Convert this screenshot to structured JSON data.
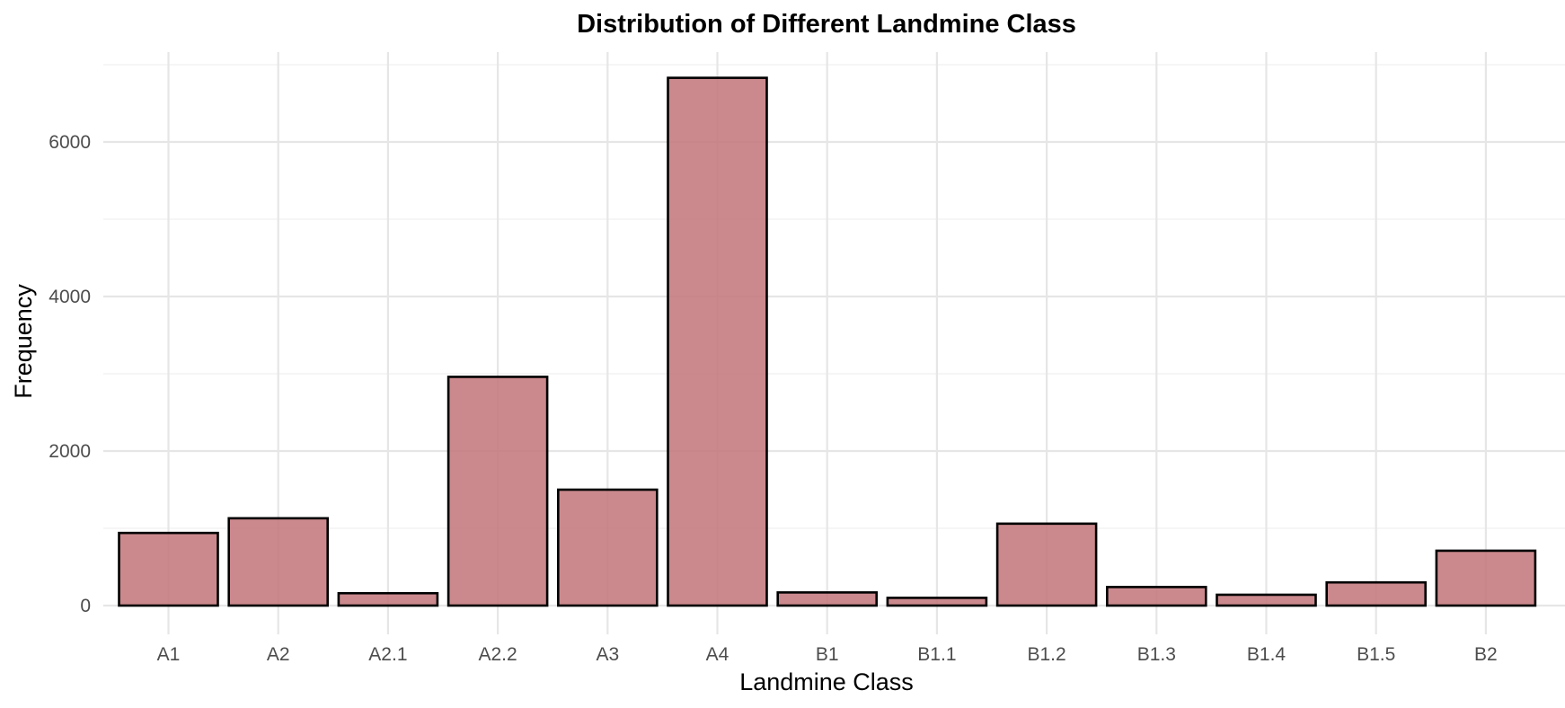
{
  "chart_data": {
    "type": "bar",
    "title": "Distribution of Different Landmine Class",
    "xlabel": "Landmine Class",
    "ylabel": "Frequency",
    "categories": [
      "A1",
      "A2",
      "A2.1",
      "A2.2",
      "A3",
      "A4",
      "B1",
      "B1.1",
      "B1.2",
      "B1.3",
      "B1.4",
      "B1.5",
      "B2"
    ],
    "values": [
      940,
      1130,
      160,
      2960,
      1500,
      6830,
      170,
      100,
      1060,
      240,
      140,
      300,
      710
    ],
    "ylim": [
      -330,
      7100
    ],
    "yticks": [
      0,
      2000,
      4000,
      6000
    ],
    "ytick_labels": [
      "0",
      "2000",
      "4000",
      "6000"
    ],
    "bar_color": "#c4797d",
    "bar_opacity": 0.88,
    "bar_outline_color": "#000000",
    "grid": true,
    "legend": "none"
  }
}
